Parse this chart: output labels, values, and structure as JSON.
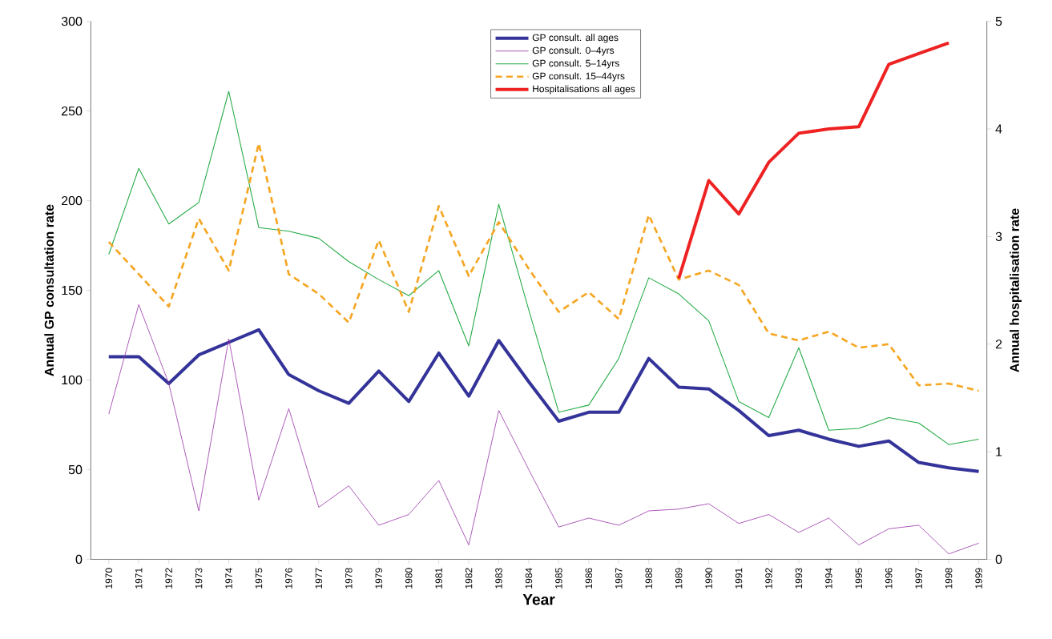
{
  "chart_data": {
    "type": "line",
    "xlabel": "Year",
    "ylabel": "Annual GP consultation rate",
    "y2label": "Annual hospitalisation rate",
    "categories": [
      "1970",
      "1971",
      "1972",
      "1973",
      "1974",
      "1975",
      "1976",
      "1977",
      "1978",
      "1979",
      "1980",
      "1981",
      "1982",
      "1983",
      "1984",
      "1985",
      "1986",
      "1987",
      "1988",
      "1989",
      "1990",
      "1991",
      "1992",
      "1993",
      "1994",
      "1995",
      "1996",
      "1997",
      "1998",
      "1999"
    ],
    "series": [
      {
        "name": "GP consult. all ages",
        "color": "#333399",
        "values": [
          113,
          113,
          98,
          114,
          121,
          128,
          103,
          94,
          87,
          105,
          88,
          115,
          91,
          122,
          99,
          77,
          82,
          82,
          112,
          96,
          95,
          83,
          69,
          72,
          67,
          63,
          66,
          54,
          51,
          49
        ]
      },
      {
        "name": "GP consult. 0–4yrs",
        "color": "#9933aa",
        "values": [
          81,
          142,
          98,
          27,
          123,
          33,
          84,
          29,
          41,
          19,
          25,
          44,
          8,
          83,
          50,
          18,
          23,
          19,
          27,
          28,
          31,
          20,
          25,
          15,
          23,
          8,
          17,
          19,
          3,
          9
        ]
      },
      {
        "name": "GP consult. 5–14yrs",
        "color": "#22aa44",
        "values": [
          170,
          218,
          187,
          199,
          261,
          185,
          183,
          179,
          166,
          156,
          147,
          161,
          119,
          198,
          139,
          82,
          86,
          112,
          157,
          148,
          133,
          88,
          79,
          118,
          72,
          73,
          79,
          76,
          64,
          67
        ]
      },
      {
        "name": "GP consult. 15–44yrs",
        "color": "#f5a623",
        "line_style": "dashed",
        "values": [
          177,
          159,
          141,
          190,
          161,
          232,
          159,
          148,
          132,
          178,
          138,
          197,
          158,
          188,
          162,
          138,
          149,
          134,
          192,
          156,
          161,
          153,
          126,
          122,
          127,
          118,
          120,
          97,
          98,
          94
        ]
      },
      {
        "name": "Hospitalisations all ages",
        "color": "#ee2222",
        "axis": "y2",
        "values": [
          null,
          null,
          null,
          null,
          null,
          null,
          null,
          null,
          null,
          null,
          null,
          null,
          null,
          null,
          null,
          null,
          null,
          null,
          null,
          2.61,
          3.52,
          3.21,
          3.69,
          3.96,
          4.0,
          4.02,
          4.6,
          4.7,
          4.8,
          null
        ]
      }
    ],
    "ylim": [
      0,
      300
    ],
    "yticks": [
      0,
      50,
      100,
      150,
      200,
      250,
      300
    ],
    "y2lim": [
      0,
      5
    ],
    "y2ticks": [
      0,
      1,
      2,
      3,
      4,
      5
    ],
    "legend": "top",
    "marker": "none",
    "line_style": "solid",
    "grid": false
  }
}
